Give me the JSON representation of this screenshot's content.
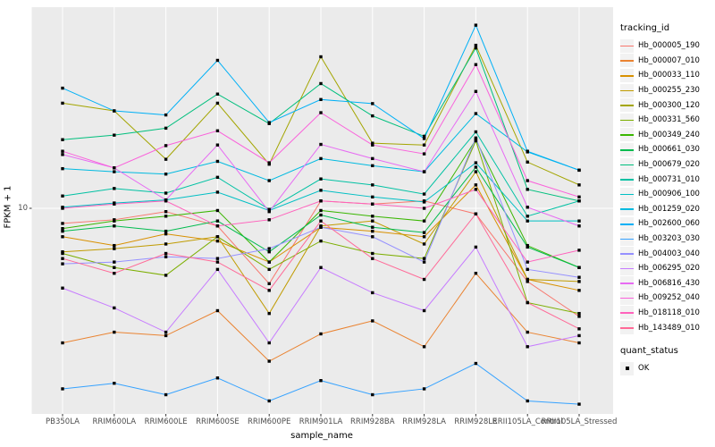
{
  "figure": {
    "y_tick_label": "10",
    "panel_bg": "#ebebeb",
    "gridline_color": "#ffffff",
    "tick_color": "#333333",
    "axis_text_color": "#4d4d4d"
  },
  "legend": {
    "tracking_title": "tracking_id",
    "quant_title": "quant_status",
    "quant_label": "OK",
    "key_bg": "#f2f2f2",
    "point_color": "#000000"
  },
  "chart_data": {
    "type": "line",
    "title": "",
    "xlabel": "sample_name",
    "ylabel": "FPKM + 1",
    "yscale": "log10",
    "y_breaks": [
      10
    ],
    "grid": "on",
    "legend_position": "right",
    "point_shape": "filled-black-square",
    "categories": [
      "PB350LA",
      "RRIM600LA",
      "RRIM600LE",
      "RRIM600SE",
      "RRIM600PE",
      "RRIM901LA",
      "RRIM928BA",
      "RRIM928LA",
      "RRIM928LE",
      "RRII105LA_Control",
      "RRII105LA_Stressed"
    ],
    "series": [
      {
        "name": "Hb_000005_190",
        "color": "#F8766D",
        "values": [
          8.7,
          9.0,
          9.7,
          8.5,
          5.0,
          10.7,
          10.4,
          10.7,
          9.5,
          5.1,
          3.7
        ]
      },
      {
        "name": "Hb_000007_010",
        "color": "#EA8331",
        "values": [
          2.9,
          3.2,
          3.1,
          3.9,
          2.45,
          3.15,
          3.55,
          2.8,
          5.5,
          3.2,
          2.9
        ]
      },
      {
        "name": "Hb_000033_110",
        "color": "#D89000",
        "values": [
          7.7,
          7.1,
          7.9,
          7.4,
          6.1,
          8.4,
          8.1,
          7.7,
          12.4,
          5.2,
          4.7
        ]
      },
      {
        "name": "Hb_000255_230",
        "color": "#C09B00",
        "values": [
          6.7,
          6.9,
          7.2,
          7.7,
          3.8,
          8.5,
          8.9,
          7.2,
          14.0,
          5.2,
          5.1
        ]
      },
      {
        "name": "Hb_000300_120",
        "color": "#A3A500",
        "values": [
          26.3,
          24.5,
          15.7,
          26.3,
          15.0,
          40.3,
          18.2,
          17.9,
          44.8,
          15.3,
          12.4
        ]
      },
      {
        "name": "Hb_000331_560",
        "color": "#7CAE00",
        "values": [
          6.6,
          5.8,
          5.4,
          7.7,
          5.7,
          7.4,
          6.6,
          6.3,
          18.6,
          4.2,
          3.8
        ]
      },
      {
        "name": "Hb_000349_240",
        "color": "#39B600",
        "values": [
          8.3,
          8.9,
          9.3,
          9.8,
          6.1,
          9.8,
          9.3,
          8.9,
          18.8,
          7.1,
          5.8
        ]
      },
      {
        "name": "Hb_000661_030",
        "color": "#00BB4E",
        "values": [
          8.1,
          8.5,
          8.1,
          8.9,
          6.7,
          9.4,
          8.4,
          8.0,
          14.6,
          7.0,
          5.8
        ]
      },
      {
        "name": "Hb_000679_020",
        "color": "#00BF7D",
        "values": [
          18.8,
          19.6,
          20.9,
          28.6,
          21.8,
          31.5,
          23.4,
          19.4,
          43.7,
          11.9,
          10.7
        ]
      },
      {
        "name": "Hb_000731_010",
        "color": "#00C1A3",
        "values": [
          11.2,
          12.0,
          11.5,
          13.3,
          9.9,
          13.1,
          12.4,
          11.4,
          20.2,
          9.3,
          10.7
        ]
      },
      {
        "name": "Hb_000906_100",
        "color": "#00BFC4",
        "values": [
          10.1,
          10.5,
          10.8,
          11.6,
          9.8,
          11.8,
          11.1,
          10.6,
          15.2,
          8.9,
          8.9
        ]
      },
      {
        "name": "Hb_001259_020",
        "color": "#00BAE0",
        "values": [
          14.4,
          14.0,
          13.7,
          15.4,
          12.9,
          15.8,
          14.8,
          14.0,
          23.9,
          16.8,
          14.2
        ]
      },
      {
        "name": "Hb_002600_060",
        "color": "#00B0F6",
        "values": [
          30.2,
          24.5,
          23.6,
          39.0,
          22.0,
          27.2,
          26.2,
          19.0,
          53.9,
          16.9,
          14.2
        ]
      },
      {
        "name": "Hb_003203_030",
        "color": "#35A2FF",
        "values": [
          1.9,
          2.0,
          1.8,
          2.1,
          1.7,
          2.05,
          1.8,
          1.9,
          2.4,
          1.7,
          1.65
        ]
      },
      {
        "name": "Hb_004003_040",
        "color": "#9590FF",
        "values": [
          6.0,
          6.1,
          6.4,
          6.3,
          6.9,
          8.4,
          7.7,
          6.1,
          19.1,
          5.7,
          5.3
        ]
      },
      {
        "name": "Hb_006295_020",
        "color": "#C77CFF",
        "values": [
          4.8,
          4.0,
          3.2,
          5.7,
          2.9,
          5.8,
          4.6,
          3.9,
          7.0,
          2.8,
          3.1
        ]
      },
      {
        "name": "Hb_006816_430",
        "color": "#E76BF3",
        "values": [
          16.4,
          14.5,
          10.8,
          17.9,
          9.7,
          18.0,
          15.8,
          14.0,
          29.3,
          10.1,
          8.5
        ]
      },
      {
        "name": "Hb_009252_040",
        "color": "#FA62DB",
        "values": [
          16.9,
          14.5,
          17.8,
          20.4,
          15.2,
          24.1,
          17.9,
          16.5,
          37.5,
          12.9,
          11.1
        ]
      },
      {
        "name": "Hb_018118_010",
        "color": "#FF62BC",
        "values": [
          10.0,
          10.4,
          10.7,
          8.5,
          9.0,
          10.7,
          10.4,
          10.0,
          11.9,
          6.1,
          6.8
        ]
      },
      {
        "name": "Hb_143489_010",
        "color": "#FF6A98",
        "values": [
          6.3,
          5.5,
          6.6,
          6.1,
          4.7,
          8.9,
          6.3,
          5.2,
          9.5,
          4.2,
          3.3
        ]
      }
    ]
  }
}
